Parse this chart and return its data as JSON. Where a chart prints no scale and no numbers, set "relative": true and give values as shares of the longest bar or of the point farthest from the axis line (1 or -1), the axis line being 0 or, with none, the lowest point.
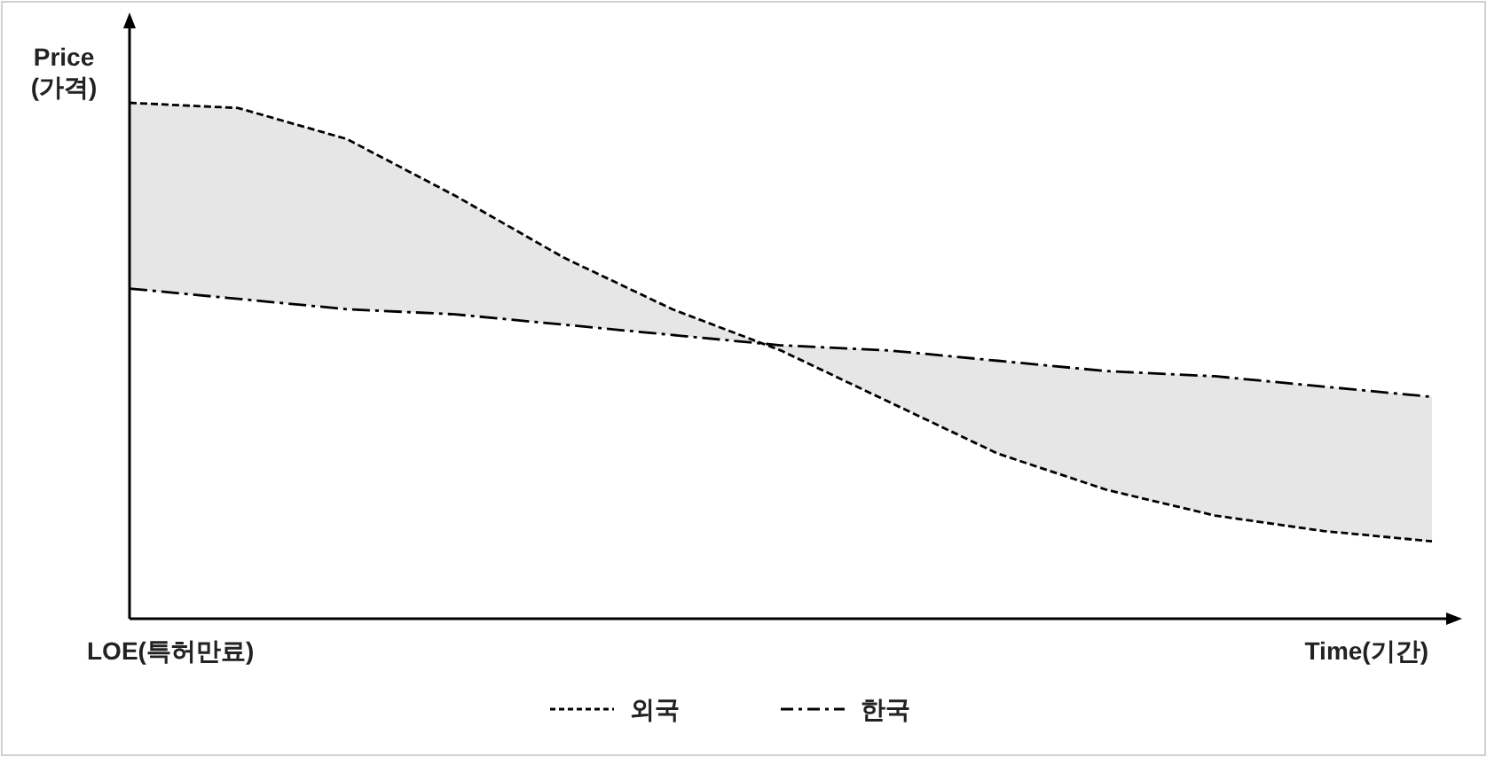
{
  "chart_data": {
    "type": "line",
    "relative": true,
    "ylabel": "Price\n(가격)",
    "xlabel": "Time(기간)",
    "annotations": [
      "LOE(특허만료)"
    ],
    "categories": [
      null,
      null,
      null,
      null,
      null,
      null,
      null,
      null,
      null,
      null,
      null,
      null,
      null
    ],
    "series": [
      {
        "name": "외국",
        "color": "#000000",
        "line_style": "dashed",
        "values": [
          1,
          0.99,
          0.93,
          0.82,
          0.7,
          0.6,
          0.52,
          0.42,
          0.32,
          0.25,
          0.2,
          0.17,
          0.15
        ]
      },
      {
        "name": "한국",
        "color": "#000000",
        "line_style": "dashdot",
        "values": [
          0.64,
          0.62,
          0.6,
          0.59,
          0.57,
          0.55,
          0.53,
          0.52,
          0.5,
          0.48,
          0.47,
          0.45,
          0.43
        ]
      }
    ],
    "legend": "bottom"
  }
}
